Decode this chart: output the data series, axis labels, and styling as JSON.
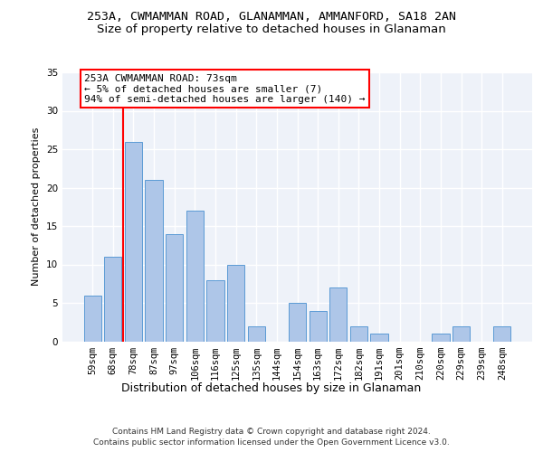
{
  "title1": "253A, CWMAMMAN ROAD, GLANAMMAN, AMMANFORD, SA18 2AN",
  "title2": "Size of property relative to detached houses in Glanaman",
  "xlabel": "Distribution of detached houses by size in Glanaman",
  "ylabel": "Number of detached properties",
  "categories": [
    "59sqm",
    "68sqm",
    "78sqm",
    "87sqm",
    "97sqm",
    "106sqm",
    "116sqm",
    "125sqm",
    "135sqm",
    "144sqm",
    "154sqm",
    "163sqm",
    "172sqm",
    "182sqm",
    "191sqm",
    "201sqm",
    "210sqm",
    "220sqm",
    "229sqm",
    "239sqm",
    "248sqm"
  ],
  "values": [
    6,
    11,
    26,
    21,
    14,
    17,
    8,
    10,
    2,
    0,
    5,
    4,
    7,
    2,
    1,
    0,
    0,
    1,
    2,
    0,
    2
  ],
  "bar_color": "#aec6e8",
  "bar_edge_color": "#5b9bd5",
  "annotation_text": "253A CWMAMMAN ROAD: 73sqm\n← 5% of detached houses are smaller (7)\n94% of semi-detached houses are larger (140) →",
  "annotation_box_color": "white",
  "annotation_box_edge_color": "red",
  "vline_color": "red",
  "ylim": [
    0,
    35
  ],
  "yticks": [
    0,
    5,
    10,
    15,
    20,
    25,
    30,
    35
  ],
  "footer1": "Contains HM Land Registry data © Crown copyright and database right 2024.",
  "footer2": "Contains public sector information licensed under the Open Government Licence v3.0.",
  "bg_color": "#eef2f9",
  "grid_color": "#ffffff",
  "title1_fontsize": 9.5,
  "title2_fontsize": 9.5,
  "xlabel_fontsize": 9,
  "ylabel_fontsize": 8,
  "tick_fontsize": 7.5,
  "annotation_fontsize": 8,
  "footer_fontsize": 6.5
}
